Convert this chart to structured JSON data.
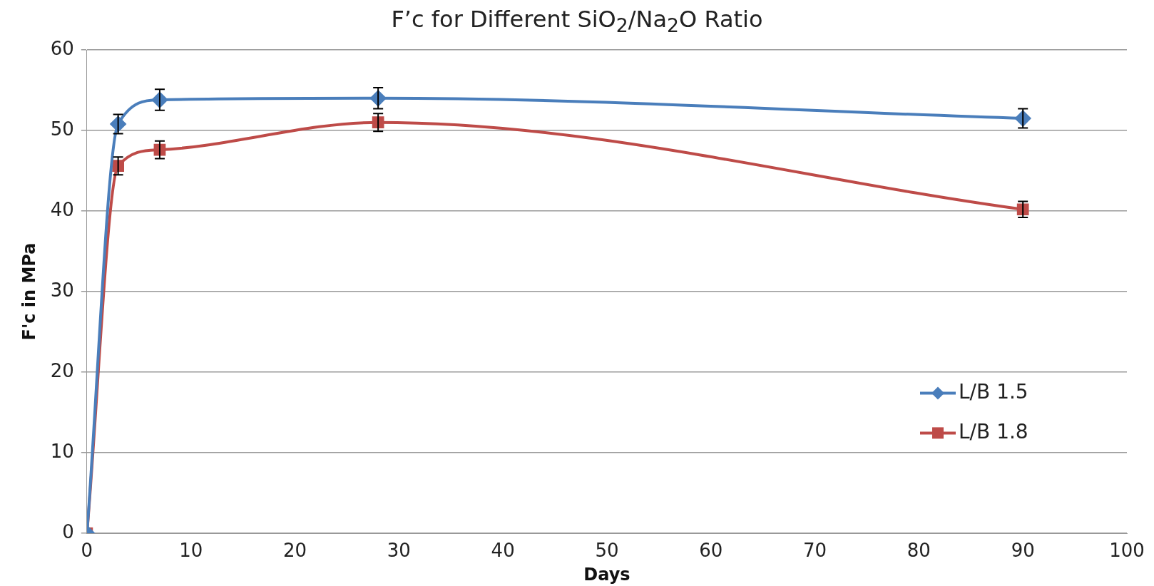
{
  "chart_data": {
    "type": "line",
    "title": "F’c for Different SiO$_{2}$/Na$_{2}$O Ratio",
    "xlabel": "Days",
    "ylabel": "F'c in MPa",
    "xlim": [
      0,
      100
    ],
    "xticks": [
      0,
      10,
      20,
      30,
      40,
      50,
      60,
      70,
      80,
      90,
      100
    ],
    "ylim": [
      0,
      60
    ],
    "yticks": [
      0,
      10,
      20,
      30,
      40,
      50,
      60
    ],
    "grid": "y",
    "legend": "right",
    "x": [
      0,
      3,
      7,
      28,
      90
    ],
    "series": [
      {
        "name": "L/B 1.5",
        "color": "#4a7ebb",
        "marker": "diamond",
        "values": [
          0,
          50.8,
          53.8,
          54,
          51.5
        ],
        "errors": [
          null,
          1.2,
          1.3,
          1.3,
          1.2
        ]
      },
      {
        "name": "L/B 1.8",
        "color": "#be4b48",
        "marker": "square",
        "values": [
          0,
          45.6,
          47.6,
          51,
          40.2
        ],
        "errors": [
          null,
          1.1,
          1.1,
          1.1,
          1
        ]
      }
    ]
  }
}
